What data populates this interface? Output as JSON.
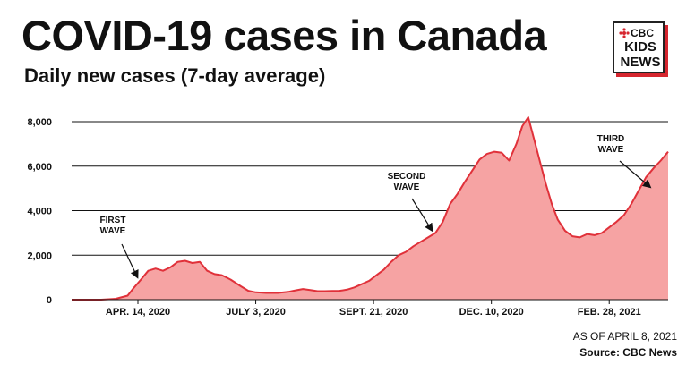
{
  "header": {
    "title": "COVID-19 cases in Canada",
    "subtitle": "Daily new cases (7-day average)"
  },
  "logo": {
    "line1": "CBC",
    "line2": "KIDS",
    "line3": "NEWS",
    "accent_color": "#d6262f"
  },
  "footer": {
    "as_of": "AS OF APRIL 8, 2021",
    "source": "Source: CBC News"
  },
  "colors": {
    "area_fill": "#f6a3a3",
    "line": "#e0313a",
    "text": "#111111"
  },
  "chart_data": {
    "type": "area",
    "title": "Daily new cases (7-day average)",
    "xlabel": "",
    "ylabel": "",
    "ylim": [
      0,
      8000
    ],
    "yticks": [
      0,
      2000,
      4000,
      6000,
      8000
    ],
    "ytick_labels": [
      "0",
      "2,000",
      "4,000",
      "6,000",
      "8,000"
    ],
    "x_day_range": [
      0,
      405
    ],
    "xticks": [
      {
        "day": 45,
        "label": "APR. 14, 2020"
      },
      {
        "day": 125,
        "label": "JULY 3, 2020"
      },
      {
        "day": 205,
        "label": "SEPT. 21, 2020"
      },
      {
        "day": 285,
        "label": "DEC. 10, 2020"
      },
      {
        "day": 365,
        "label": "FEB. 28, 2021"
      }
    ],
    "series": [
      {
        "name": "Daily new cases (7-day average)",
        "x": [
          0,
          20,
          30,
          38,
          42,
          47,
          52,
          57,
          62,
          67,
          72,
          77,
          82,
          87,
          92,
          97,
          102,
          108,
          115,
          120,
          125,
          132,
          140,
          147,
          152,
          157,
          162,
          167,
          172,
          177,
          182,
          187,
          192,
          197,
          202,
          207,
          212,
          217,
          222,
          227,
          232,
          237,
          242,
          247,
          252,
          257,
          262,
          267,
          272,
          277,
          282,
          287,
          292,
          297,
          302,
          306,
          310,
          314,
          318,
          322,
          326,
          330,
          335,
          340,
          345,
          350,
          355,
          360,
          365,
          370,
          375,
          380,
          385,
          390,
          395,
          400,
          405
        ],
        "values": [
          0,
          0,
          40,
          180,
          520,
          900,
          1300,
          1400,
          1300,
          1450,
          1700,
          1750,
          1650,
          1700,
          1300,
          1150,
          1100,
          900,
          600,
          400,
          330,
          300,
          300,
          350,
          420,
          480,
          430,
          380,
          380,
          390,
          400,
          450,
          550,
          700,
          850,
          1100,
          1350,
          1700,
          2000,
          2150,
          2400,
          2600,
          2800,
          3000,
          3500,
          4300,
          4750,
          5300,
          5800,
          6300,
          6550,
          6650,
          6600,
          6250,
          7000,
          7800,
          8200,
          7200,
          6200,
          5200,
          4300,
          3600,
          3100,
          2850,
          2800,
          2950,
          2900,
          3000,
          3250,
          3500,
          3800,
          4300,
          4900,
          5500,
          5900,
          6250,
          6650
        ]
      }
    ],
    "annotations": [
      {
        "text": [
          "FIRST",
          "WAVE"
        ],
        "day": 47,
        "value": 900
      },
      {
        "text": [
          "SECOND",
          "WAVE"
        ],
        "day": 247,
        "value": 3000
      },
      {
        "text": [
          "THIRD",
          "WAVE"
        ],
        "day": 395,
        "value": 4950
      }
    ]
  }
}
